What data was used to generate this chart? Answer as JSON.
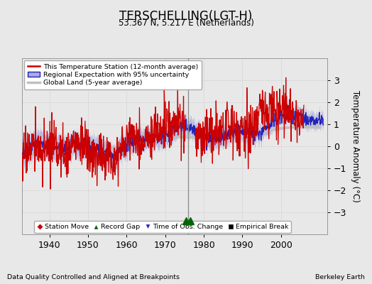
{
  "title": "TERSCHELLING(LGT-H)",
  "subtitle": "53.367 N, 5.217 E (Netherlands)",
  "ylabel": "Temperature Anomaly (°C)",
  "xlabel_note": "Data Quality Controlled and Aligned at Breakpoints",
  "source_note": "Berkeley Earth",
  "ylim": [
    -4,
    4
  ],
  "xlim": [
    1933,
    2012
  ],
  "xticks": [
    1940,
    1950,
    1960,
    1970,
    1980,
    1990,
    2000
  ],
  "yticks": [
    -3,
    -2,
    -1,
    0,
    1,
    2,
    3
  ],
  "bg_color": "#e8e8e8",
  "plot_bg_color": "#e8e8e8",
  "station_color": "#cc0000",
  "regional_color": "#2222bb",
  "regional_fill_color": "#aaaadd",
  "global_color": "#c0c0c0",
  "record_gap_marker_color": "#006600",
  "record_gap_x1": 1975.3,
  "record_gap_x2": 1976.5,
  "record_gap_y": -3.4,
  "vertical_line_x": 1976.0,
  "grid_color": "#cccccc",
  "legend_station": "This Temperature Station (12-month average)",
  "legend_regional": "Regional Expectation with 95% uncertainty",
  "legend_global": "Global Land (5-year average)",
  "legend_station_move": "Station Move",
  "legend_record_gap": "Record Gap",
  "legend_time_obs": "Time of Obs. Change",
  "legend_empirical": "Empirical Break"
}
